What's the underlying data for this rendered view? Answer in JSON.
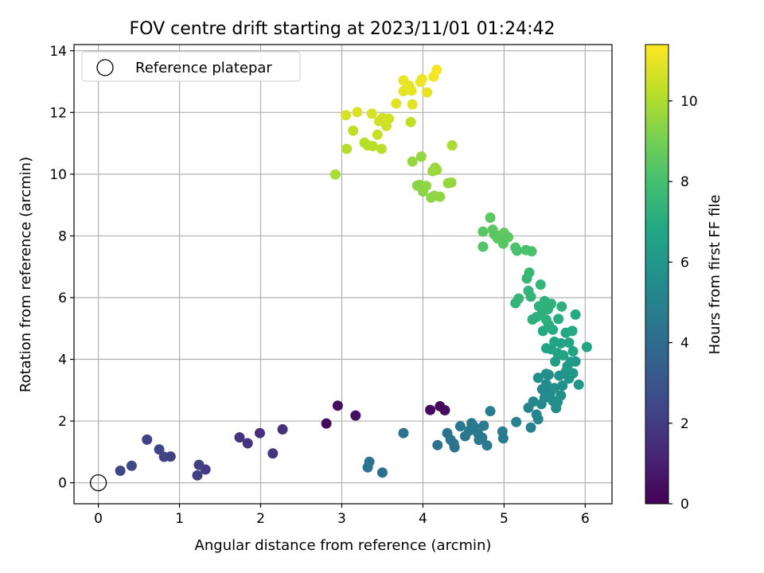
{
  "chart_data": {
    "type": "scatter",
    "title": "FOV centre drift starting at 2023/11/01 01:24:42",
    "xlabel": "Angular distance from reference (arcmin)",
    "ylabel": "Rotation from reference (arcmin)",
    "xlim": [
      -0.3,
      6.33
    ],
    "ylim": [
      -0.68,
      14.2
    ],
    "xticks": [
      0,
      1,
      2,
      3,
      4,
      5,
      6
    ],
    "yticks": [
      0,
      2,
      4,
      6,
      8,
      10,
      12,
      14
    ],
    "grid": true,
    "legend": {
      "position": "top-left",
      "entries": [
        "Reference platepar"
      ]
    },
    "reference_point": {
      "label": "Reference platepar",
      "x": 0,
      "y": 0
    },
    "colorbar": {
      "label": "Hours from first FF file",
      "colormap": "viridis",
      "range": [
        0,
        11.4
      ],
      "ticks": [
        0,
        2,
        4,
        6,
        8,
        10
      ]
    },
    "points": [
      {
        "x": 2.81,
        "y": 1.92,
        "t": 0.3
      },
      {
        "x": 2.95,
        "y": 2.5,
        "t": 0.4
      },
      {
        "x": 3.17,
        "y": 2.18,
        "t": 0.5
      },
      {
        "x": 4.09,
        "y": 2.36,
        "t": 0.3
      },
      {
        "x": 4.21,
        "y": 2.48,
        "t": 0.3
      },
      {
        "x": 4.27,
        "y": 2.35,
        "t": 0.4
      },
      {
        "x": 2.27,
        "y": 1.73,
        "t": 1.6
      },
      {
        "x": 2.15,
        "y": 0.95,
        "t": 1.7
      },
      {
        "x": 1.99,
        "y": 1.61,
        "t": 1.6
      },
      {
        "x": 1.84,
        "y": 1.28,
        "t": 1.7
      },
      {
        "x": 1.74,
        "y": 1.47,
        "t": 1.7
      },
      {
        "x": 1.32,
        "y": 0.43,
        "t": 2.0
      },
      {
        "x": 1.24,
        "y": 0.58,
        "t": 2.1
      },
      {
        "x": 1.22,
        "y": 0.24,
        "t": 2.1
      },
      {
        "x": 0.89,
        "y": 0.85,
        "t": 2.2
      },
      {
        "x": 0.81,
        "y": 0.84,
        "t": 2.3
      },
      {
        "x": 0.75,
        "y": 1.08,
        "t": 2.3
      },
      {
        "x": 0.6,
        "y": 1.4,
        "t": 2.2
      },
      {
        "x": 0.41,
        "y": 0.55,
        "t": 2.4
      },
      {
        "x": 0.27,
        "y": 0.39,
        "t": 2.4
      },
      {
        "x": 3.34,
        "y": 0.68,
        "t": 4.3
      },
      {
        "x": 3.32,
        "y": 0.5,
        "t": 4.3
      },
      {
        "x": 3.5,
        "y": 0.33,
        "t": 4.2
      },
      {
        "x": 3.76,
        "y": 1.61,
        "t": 4.3
      },
      {
        "x": 4.18,
        "y": 1.22,
        "t": 4.3
      },
      {
        "x": 4.3,
        "y": 1.61,
        "t": 4.4
      },
      {
        "x": 4.34,
        "y": 1.4,
        "t": 4.4
      },
      {
        "x": 4.38,
        "y": 1.27,
        "t": 4.4
      },
      {
        "x": 4.39,
        "y": 1.15,
        "t": 4.4
      },
      {
        "x": 4.46,
        "y": 1.83,
        "t": 4.5
      },
      {
        "x": 4.52,
        "y": 1.51,
        "t": 4.5
      },
      {
        "x": 4.57,
        "y": 1.69,
        "t": 4.5
      },
      {
        "x": 4.6,
        "y": 1.93,
        "t": 4.5
      },
      {
        "x": 4.63,
        "y": 1.82,
        "t": 4.6
      },
      {
        "x": 4.68,
        "y": 1.6,
        "t": 4.6
      },
      {
        "x": 4.69,
        "y": 1.39,
        "t": 4.6
      },
      {
        "x": 4.73,
        "y": 1.46,
        "t": 4.6
      },
      {
        "x": 4.75,
        "y": 1.85,
        "t": 4.6
      },
      {
        "x": 4.79,
        "y": 1.21,
        "t": 4.6
      },
      {
        "x": 4.83,
        "y": 2.32,
        "t": 4.8
      },
      {
        "x": 4.98,
        "y": 1.66,
        "t": 4.7
      },
      {
        "x": 4.99,
        "y": 1.44,
        "t": 4.7
      },
      {
        "x": 5.15,
        "y": 1.97,
        "t": 5.0
      },
      {
        "x": 5.3,
        "y": 2.43,
        "t": 5.1
      },
      {
        "x": 5.33,
        "y": 1.79,
        "t": 5.0
      },
      {
        "x": 5.36,
        "y": 2.63,
        "t": 5.2
      },
      {
        "x": 5.4,
        "y": 2.21,
        "t": 5.2
      },
      {
        "x": 5.42,
        "y": 2.06,
        "t": 5.1
      },
      {
        "x": 5.46,
        "y": 2.55,
        "t": 5.3
      },
      {
        "x": 5.47,
        "y": 3.03,
        "t": 5.4
      },
      {
        "x": 5.5,
        "y": 2.76,
        "t": 5.4
      },
      {
        "x": 5.52,
        "y": 3.2,
        "t": 5.5
      },
      {
        "x": 5.55,
        "y": 3.5,
        "t": 5.5
      },
      {
        "x": 5.57,
        "y": 2.91,
        "t": 5.4
      },
      {
        "x": 5.6,
        "y": 2.66,
        "t": 5.5
      },
      {
        "x": 5.62,
        "y": 3.07,
        "t": 5.6
      },
      {
        "x": 5.64,
        "y": 2.42,
        "t": 5.5
      },
      {
        "x": 5.66,
        "y": 2.62,
        "t": 5.6
      },
      {
        "x": 5.7,
        "y": 2.83,
        "t": 5.6
      },
      {
        "x": 5.42,
        "y": 3.4,
        "t": 5.6
      },
      {
        "x": 5.52,
        "y": 3.53,
        "t": 5.6
      },
      {
        "x": 5.68,
        "y": 3.47,
        "t": 5.8
      },
      {
        "x": 5.72,
        "y": 3.15,
        "t": 5.7
      },
      {
        "x": 5.76,
        "y": 3.6,
        "t": 5.9
      },
      {
        "x": 5.8,
        "y": 3.38,
        "t": 5.9
      },
      {
        "x": 5.85,
        "y": 3.55,
        "t": 6.0
      },
      {
        "x": 5.88,
        "y": 3.93,
        "t": 6.1
      },
      {
        "x": 5.92,
        "y": 3.18,
        "t": 6.0
      },
      {
        "x": 5.82,
        "y": 3.92,
        "t": 6.2
      },
      {
        "x": 5.78,
        "y": 3.78,
        "t": 6.2
      },
      {
        "x": 5.63,
        "y": 3.93,
        "t": 6.4
      },
      {
        "x": 5.66,
        "y": 4.2,
        "t": 6.5
      },
      {
        "x": 5.7,
        "y": 4.52,
        "t": 6.6
      },
      {
        "x": 5.73,
        "y": 4.13,
        "t": 6.6
      },
      {
        "x": 5.76,
        "y": 4.86,
        "t": 6.7
      },
      {
        "x": 5.8,
        "y": 4.54,
        "t": 6.7
      },
      {
        "x": 5.85,
        "y": 4.26,
        "t": 6.6
      },
      {
        "x": 5.88,
        "y": 5.45,
        "t": 6.9
      },
      {
        "x": 6.02,
        "y": 4.4,
        "t": 6.7
      },
      {
        "x": 5.58,
        "y": 4.33,
        "t": 6.6
      },
      {
        "x": 5.62,
        "y": 4.57,
        "t": 6.7
      },
      {
        "x": 5.52,
        "y": 4.36,
        "t": 6.7
      },
      {
        "x": 5.48,
        "y": 4.92,
        "t": 6.9
      },
      {
        "x": 5.55,
        "y": 5.12,
        "t": 7.0
      },
      {
        "x": 5.6,
        "y": 4.96,
        "t": 7.0
      },
      {
        "x": 5.67,
        "y": 5.31,
        "t": 7.1
      },
      {
        "x": 5.71,
        "y": 5.71,
        "t": 7.2
      },
      {
        "x": 5.84,
        "y": 4.92,
        "t": 6.9
      },
      {
        "x": 5.43,
        "y": 5.72,
        "t": 7.2
      },
      {
        "x": 5.46,
        "y": 5.45,
        "t": 7.2
      },
      {
        "x": 5.5,
        "y": 5.89,
        "t": 7.3
      },
      {
        "x": 5.54,
        "y": 5.62,
        "t": 7.3
      },
      {
        "x": 5.58,
        "y": 5.8,
        "t": 7.3
      },
      {
        "x": 5.4,
        "y": 5.37,
        "t": 7.2
      },
      {
        "x": 5.35,
        "y": 5.29,
        "t": 7.2
      },
      {
        "x": 5.52,
        "y": 5.28,
        "t": 7.2
      },
      {
        "x": 5.45,
        "y": 6.42,
        "t": 7.5
      },
      {
        "x": 5.3,
        "y": 6.22,
        "t": 7.4
      },
      {
        "x": 5.33,
        "y": 6.03,
        "t": 7.4
      },
      {
        "x": 5.28,
        "y": 6.62,
        "t": 7.5
      },
      {
        "x": 5.31,
        "y": 6.81,
        "t": 7.6
      },
      {
        "x": 5.18,
        "y": 5.97,
        "t": 7.5
      },
      {
        "x": 5.14,
        "y": 5.82,
        "t": 7.4
      },
      {
        "x": 5.16,
        "y": 7.52,
        "t": 8.0
      },
      {
        "x": 5.14,
        "y": 7.62,
        "t": 8.1
      },
      {
        "x": 5.27,
        "y": 7.54,
        "t": 8.1
      },
      {
        "x": 5.34,
        "y": 7.5,
        "t": 8.1
      },
      {
        "x": 4.74,
        "y": 8.14,
        "t": 8.4
      },
      {
        "x": 4.74,
        "y": 7.65,
        "t": 8.3
      },
      {
        "x": 4.83,
        "y": 8.59,
        "t": 8.5
      },
      {
        "x": 4.86,
        "y": 8.2,
        "t": 8.5
      },
      {
        "x": 4.88,
        "y": 8.05,
        "t": 8.4
      },
      {
        "x": 4.94,
        "y": 8.0,
        "t": 8.5
      },
      {
        "x": 5.0,
        "y": 8.1,
        "t": 8.6
      },
      {
        "x": 5.05,
        "y": 7.96,
        "t": 8.5
      },
      {
        "x": 4.99,
        "y": 7.75,
        "t": 8.4
      },
      {
        "x": 4.92,
        "y": 7.92,
        "t": 8.5
      },
      {
        "x": 3.87,
        "y": 10.41,
        "t": 9.6
      },
      {
        "x": 3.98,
        "y": 10.57,
        "t": 9.6
      },
      {
        "x": 3.96,
        "y": 9.65,
        "t": 9.4
      },
      {
        "x": 4.0,
        "y": 9.44,
        "t": 9.4
      },
      {
        "x": 4.04,
        "y": 9.62,
        "t": 9.5
      },
      {
        "x": 4.1,
        "y": 9.24,
        "t": 9.5
      },
      {
        "x": 4.12,
        "y": 10.1,
        "t": 9.7
      },
      {
        "x": 4.15,
        "y": 10.21,
        "t": 9.7
      },
      {
        "x": 4.17,
        "y": 10.14,
        "t": 9.7
      },
      {
        "x": 4.14,
        "y": 9.3,
        "t": 9.5
      },
      {
        "x": 4.21,
        "y": 9.27,
        "t": 9.5
      },
      {
        "x": 4.31,
        "y": 9.71,
        "t": 9.6
      },
      {
        "x": 4.35,
        "y": 9.73,
        "t": 9.6
      },
      {
        "x": 4.36,
        "y": 10.93,
        "t": 9.9
      },
      {
        "x": 3.93,
        "y": 9.63,
        "t": 9.4
      },
      {
        "x": 2.92,
        "y": 9.99,
        "t": 9.9
      },
      {
        "x": 3.06,
        "y": 10.82,
        "t": 10.1
      },
      {
        "x": 3.28,
        "y": 11.02,
        "t": 10.2
      },
      {
        "x": 3.32,
        "y": 10.93,
        "t": 10.2
      },
      {
        "x": 3.38,
        "y": 10.91,
        "t": 10.2
      },
      {
        "x": 3.49,
        "y": 10.82,
        "t": 10.2
      },
      {
        "x": 3.85,
        "y": 11.69,
        "t": 10.3
      },
      {
        "x": 3.14,
        "y": 11.41,
        "t": 10.3
      },
      {
        "x": 3.44,
        "y": 11.28,
        "t": 10.4
      },
      {
        "x": 3.52,
        "y": 11.7,
        "t": 10.5
      },
      {
        "x": 3.55,
        "y": 11.56,
        "t": 10.5
      },
      {
        "x": 3.05,
        "y": 11.91,
        "t": 10.7
      },
      {
        "x": 3.19,
        "y": 12.01,
        "t": 10.8
      },
      {
        "x": 3.37,
        "y": 11.96,
        "t": 10.7
      },
      {
        "x": 3.46,
        "y": 11.72,
        "t": 10.6
      },
      {
        "x": 3.5,
        "y": 11.82,
        "t": 10.6
      },
      {
        "x": 3.58,
        "y": 11.8,
        "t": 10.6
      },
      {
        "x": 3.87,
        "y": 12.26,
        "t": 10.9
      },
      {
        "x": 3.67,
        "y": 12.29,
        "t": 10.9
      },
      {
        "x": 3.76,
        "y": 12.69,
        "t": 11.0
      },
      {
        "x": 3.8,
        "y": 12.74,
        "t": 11.0
      },
      {
        "x": 3.76,
        "y": 13.04,
        "t": 11.1
      },
      {
        "x": 3.83,
        "y": 12.87,
        "t": 11.0
      },
      {
        "x": 3.86,
        "y": 12.71,
        "t": 11.0
      },
      {
        "x": 3.97,
        "y": 12.99,
        "t": 11.1
      },
      {
        "x": 3.99,
        "y": 13.08,
        "t": 11.1
      },
      {
        "x": 4.05,
        "y": 12.65,
        "t": 11.0
      },
      {
        "x": 4.13,
        "y": 13.16,
        "t": 11.2
      },
      {
        "x": 4.17,
        "y": 13.38,
        "t": 11.3
      }
    ]
  }
}
